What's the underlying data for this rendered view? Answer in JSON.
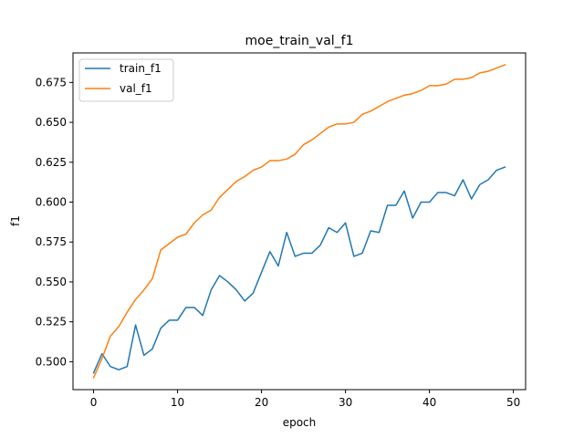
{
  "chart_data": {
    "type": "line",
    "title": "moe_train_val_f1",
    "xlabel": "epoch",
    "ylabel": "f1",
    "xlim": [
      -2.45,
      51.45
    ],
    "ylim": [
      0.4825,
      0.6935
    ],
    "xticks": [
      0,
      10,
      20,
      30,
      40,
      50
    ],
    "xtick_labels": [
      "0",
      "10",
      "20",
      "30",
      "40",
      "50"
    ],
    "yticks": [
      0.5,
      0.525,
      0.55,
      0.575,
      0.6,
      0.625,
      0.65,
      0.675
    ],
    "ytick_labels": [
      "0.500",
      "0.525",
      "0.550",
      "0.575",
      "0.600",
      "0.625",
      "0.650",
      "0.675"
    ],
    "grid": false,
    "legend_position": "top-left",
    "x": [
      0,
      1,
      2,
      3,
      4,
      5,
      6,
      7,
      8,
      9,
      10,
      11,
      12,
      13,
      14,
      15,
      16,
      17,
      18,
      19,
      20,
      21,
      22,
      23,
      24,
      25,
      26,
      27,
      28,
      29,
      30,
      31,
      32,
      33,
      34,
      35,
      36,
      37,
      38,
      39,
      40,
      41,
      42,
      43,
      44,
      45,
      46,
      47,
      48,
      49
    ],
    "series": [
      {
        "name": "train_f1",
        "color": "#1f77b4",
        "values": [
          0.493,
          0.505,
          0.497,
          0.495,
          0.497,
          0.523,
          0.504,
          0.508,
          0.521,
          0.526,
          0.526,
          0.534,
          0.534,
          0.529,
          0.545,
          0.554,
          0.55,
          0.545,
          0.538,
          0.543,
          0.556,
          0.569,
          0.56,
          0.581,
          0.566,
          0.568,
          0.568,
          0.573,
          0.584,
          0.581,
          0.587,
          0.566,
          0.568,
          0.582,
          0.581,
          0.598,
          0.598,
          0.607,
          0.59,
          0.6,
          0.6,
          0.606,
          0.606,
          0.604,
          0.614,
          0.602,
          0.611,
          0.614,
          0.62,
          0.622
        ]
      },
      {
        "name": "val_f1",
        "color": "#ff7f0e",
        "values": [
          0.49,
          0.502,
          0.516,
          0.522,
          0.531,
          0.539,
          0.545,
          0.552,
          0.57,
          0.574,
          0.578,
          0.58,
          0.587,
          0.592,
          0.595,
          0.603,
          0.608,
          0.613,
          0.616,
          0.62,
          0.622,
          0.626,
          0.626,
          0.627,
          0.63,
          0.636,
          0.639,
          0.643,
          0.647,
          0.649,
          0.649,
          0.65,
          0.655,
          0.657,
          0.66,
          0.663,
          0.665,
          0.667,
          0.668,
          0.67,
          0.673,
          0.673,
          0.674,
          0.677,
          0.677,
          0.678,
          0.681,
          0.682,
          0.684,
          0.686
        ]
      }
    ]
  }
}
